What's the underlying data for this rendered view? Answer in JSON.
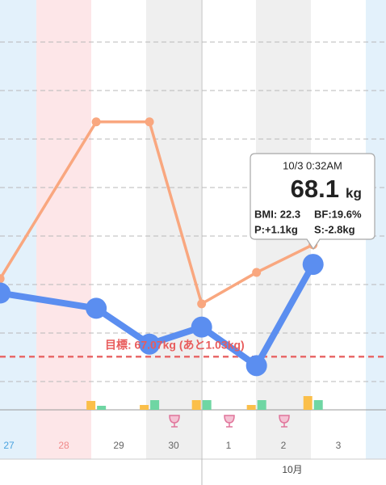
{
  "chart_data": {
    "type": "line",
    "categories": [
      "27",
      "28",
      "29",
      "30",
      "1",
      "2",
      "3",
      null
    ],
    "band_colors": [
      "#e3f1fb",
      "#fde6e8",
      "#ffffff",
      "#efefef",
      "#ffffff",
      "#efefef",
      "#ffffff",
      "#e3f1fb"
    ],
    "label_colors": [
      "#4aa3df",
      "#f08a8a",
      "#666666",
      "#666666",
      "#666666",
      "#666666",
      "#666666",
      "#666666"
    ],
    "month_label": "10月",
    "xlim": [
      0.338,
      7.368
    ],
    "x": [
      0.34,
      2.09,
      3.06,
      4.01,
      5.01,
      6.04
    ],
    "ylim": [
      66.45,
      71.05
    ],
    "series": [
      {
        "color": "#5b8ef0",
        "values": [
          67.78,
          67.61,
          67.21,
          67.4,
          66.97,
          68.1
        ]
      },
      {
        "color": "#f9a77f",
        "values": [
          67.94,
          69.69,
          69.69,
          67.66,
          68.01,
          68.32
        ]
      }
    ],
    "bar_ylim": [
      0,
      60
    ],
    "bar_series": [
      {
        "color": "#fbbf4a",
        "values": [
          null,
          11,
          6,
          12,
          6,
          17
        ]
      },
      {
        "color": "#6fd6a3",
        "values": [
          null,
          5,
          12,
          12,
          12,
          12
        ]
      }
    ],
    "goal": 67.07,
    "goal_label": "目標: 67.07kg (あと1.03kg)",
    "tooltip": {
      "time": "10/3 0:32AM",
      "weight": "68.1",
      "unit": "kg",
      "bmi": "BMI: 22.3",
      "bf": "BF:19.6%",
      "p": "P:+1.1kg",
      "s": "S:-2.8kg"
    }
  }
}
